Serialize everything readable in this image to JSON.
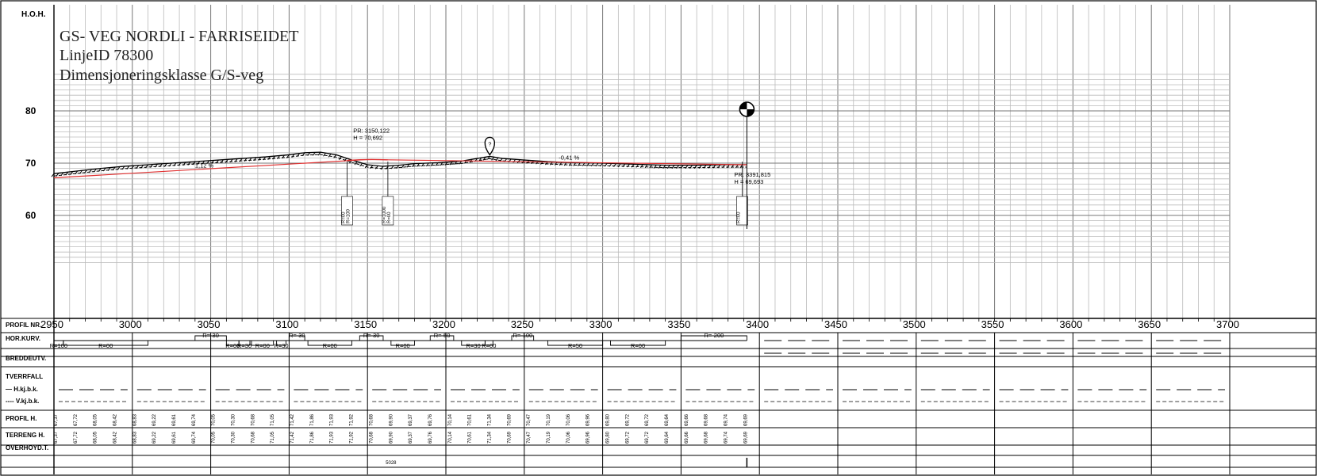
{
  "header": {
    "axis_title": "H.O.H.",
    "title_lines": [
      "GS- VEG NORDLI - FARRISEIDET",
      "LinjeID 78300",
      "Dimensjoneringsklasse G/S-veg"
    ]
  },
  "profile": {
    "y_ticks": [
      80,
      70,
      60
    ],
    "x_ticks": [
      2950,
      3000,
      3050,
      3100,
      3150,
      3200,
      3250,
      3300,
      3350,
      3400,
      3450,
      3500,
      3550,
      3600,
      3650,
      3700
    ],
    "x_range": [
      2950,
      3700
    ],
    "y_range": [
      51,
      87
    ],
    "grid": true,
    "terrain": [
      [
        2950,
        68.0
      ],
      [
        2965,
        68.5
      ],
      [
        2980,
        69.0
      ],
      [
        2995,
        69.4
      ],
      [
        3010,
        69.7
      ],
      [
        3025,
        70.0
      ],
      [
        3040,
        70.3
      ],
      [
        3055,
        70.6
      ],
      [
        3070,
        70.9
      ],
      [
        3085,
        71.2
      ],
      [
        3100,
        71.6
      ],
      [
        3110,
        72.0
      ],
      [
        3120,
        72.1
      ],
      [
        3130,
        71.6
      ],
      [
        3140,
        70.6
      ],
      [
        3150,
        69.7
      ],
      [
        3160,
        69.4
      ],
      [
        3170,
        69.6
      ],
      [
        3180,
        69.9
      ],
      [
        3195,
        70.1
      ],
      [
        3210,
        70.4
      ],
      [
        3220,
        70.9
      ],
      [
        3228,
        71.3
      ],
      [
        3236,
        70.9
      ],
      [
        3250,
        70.6
      ],
      [
        3265,
        70.3
      ],
      [
        3280,
        70.1
      ],
      [
        3300,
        70.0
      ],
      [
        3320,
        69.8
      ],
      [
        3340,
        69.6
      ],
      [
        3360,
        69.6
      ],
      [
        3378,
        69.7
      ],
      [
        3392,
        69.7
      ]
    ],
    "design_line": [
      [
        2950,
        67.2
      ],
      [
        3150,
        70.692
      ],
      [
        3392,
        69.693
      ]
    ],
    "gradients": [
      {
        "label": "1,12 %",
        "x": 3040,
        "y": 69.8
      },
      {
        "label": "-0,41 %",
        "x": 3272,
        "y": 70.7
      }
    ],
    "points": [
      {
        "label_pr": "PR: 3150,122",
        "label_h": "H = 70,692",
        "x": 3150,
        "y": 70.692
      },
      {
        "label_pr": "PR: 3391,815",
        "label_h": "H = 69,693",
        "x": 3392,
        "y": 69.693
      }
    ],
    "vertical_curves": [
      {
        "x": 3137,
        "labels": [
          "R=00",
          "R=100"
        ]
      },
      {
        "x": 3163,
        "labels": [
          "R=1000",
          "R=00"
        ]
      },
      {
        "x": 3389,
        "labels": [
          "R=00"
        ]
      }
    ],
    "marker_x": 3228,
    "marker_label": "?",
    "benchmark_x": 3392
  },
  "band": {
    "row_labels": [
      "PROFIL NR.",
      "HOR.KURV.",
      "BREDDEUTV.",
      "TVERRFALL",
      "— H.kj.b.k.",
      "---- V.kj.b.k.",
      "PROFIL H.",
      "TERRENG H.",
      "OVERHOYD.T."
    ],
    "hor_segments": [
      {
        "label": "R=100",
        "x1": 2950,
        "x2": 2956,
        "up": false
      },
      {
        "label": "R=00",
        "x1": 2956,
        "x2": 3010,
        "up": false
      },
      {
        "label": "R=-30",
        "x1": 3040,
        "x2": 3060,
        "up": true
      },
      {
        "label": "R=00",
        "x1": 3060,
        "x2": 3068,
        "up": false
      },
      {
        "label": "R=30",
        "x1": 3068,
        "x2": 3075,
        "up": false
      },
      {
        "label": "R=00",
        "x1": 3076,
        "x2": 3090,
        "up": false
      },
      {
        "label": "R=30",
        "x1": 3092,
        "x2": 3098,
        "up": false
      },
      {
        "label": "R=-30",
        "x1": 3100,
        "x2": 3110,
        "up": true
      },
      {
        "label": "R=00",
        "x1": 3112,
        "x2": 3140,
        "up": false
      },
      {
        "label": "R=-30",
        "x1": 3145,
        "x2": 3160,
        "up": true
      },
      {
        "label": "R=00",
        "x1": 3165,
        "x2": 3180,
        "up": false
      },
      {
        "label": "R=-50",
        "x1": 3190,
        "x2": 3205,
        "up": true
      },
      {
        "label": "R=30",
        "x1": 3210,
        "x2": 3225,
        "up": false
      },
      {
        "label": "R=00",
        "x1": 3225,
        "x2": 3230,
        "up": false
      },
      {
        "label": "R=-100",
        "x1": 3242,
        "x2": 3256,
        "up": true
      },
      {
        "label": "R=50",
        "x1": 3265,
        "x2": 3300,
        "up": false
      },
      {
        "label": "R=00",
        "x1": 3305,
        "x2": 3340,
        "up": false
      },
      {
        "label": "R=-200",
        "x1": 3350,
        "x2": 3392,
        "up": true
      }
    ],
    "profile_h_labels": [
      "67,37",
      "67,72",
      "68,05",
      "68,42",
      "68,83",
      "69,22",
      "69,61",
      "69,74",
      "70,05",
      "70,30",
      "70,68",
      "71,05",
      "71,42",
      "71,86",
      "71,93",
      "71,92",
      "70,68",
      "69,90",
      "69,37",
      "69,76",
      "70,14",
      "70,61",
      "71,34",
      "70,69",
      "70,47",
      "70,19",
      "70,06",
      "69,96",
      "69,80",
      "69,72",
      "69,72",
      "69,64",
      "69,66",
      "69,68",
      "69,74",
      "69,69"
    ],
    "overhoyde_labels": [
      "5028"
    ]
  }
}
